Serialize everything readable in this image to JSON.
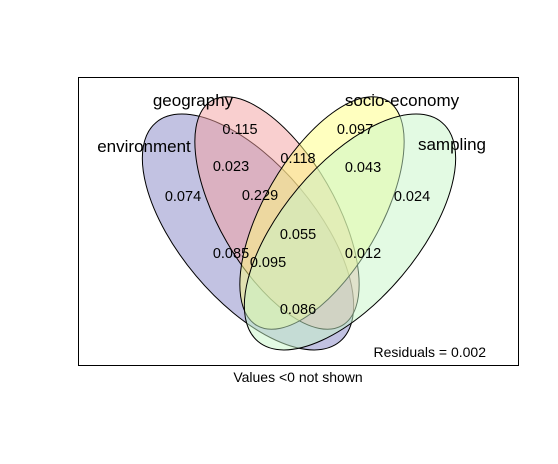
{
  "sets": [
    {
      "key": "environment",
      "label": "environment",
      "fill": "#8585c6",
      "opacity": 0.5
    },
    {
      "key": "geography",
      "label": "geography",
      "fill": "#f4a0a0",
      "opacity": 0.5
    },
    {
      "key": "socio_economy",
      "label": "socio-economy",
      "fill": "#ffff80",
      "opacity": 0.5
    },
    {
      "key": "sampling",
      "label": "sampling",
      "fill": "#c8f5c8",
      "opacity": 0.5
    }
  ],
  "regions": {
    "geography_only": "0.115",
    "socio_economy_only": "0.097",
    "environment_only": "0.074",
    "sampling_only": "0.024",
    "environment_geography": "0.023",
    "geography_socio_economy": "0.118",
    "socio_economy_sampling": "0.043",
    "environment_geography_socio_economy": "0.229",
    "all_four": "0.055",
    "environment_socio_economy": "0.085",
    "environment_socio_economy_sampling": "0.095",
    "geography_socio_economy_sampling": "0.012",
    "environment_sampling": "0.086"
  },
  "residuals_text": "Residuals = 0.002",
  "footnote": "Values <0 not shown"
}
